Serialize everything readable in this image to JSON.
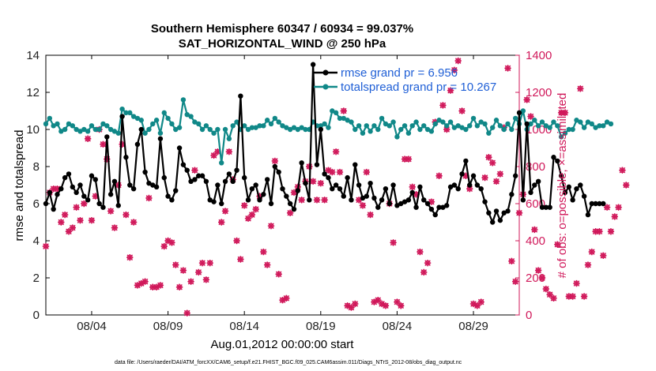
{
  "chart_data": {
    "type": "line",
    "title": "Southern Hemisphere 60347 / 60934 = 99.037%",
    "subtitle": "SAT_HORIZONTAL_WIND @ 250 hPa",
    "xlabel": "Aug.01,2012 00:00:00 start",
    "ylabel_left": "rmse and totalspread",
    "ylabel_right": "# of obs: o=possible; ×=assimilated",
    "x_tick_labels": [
      "08/04",
      "08/09",
      "08/14",
      "08/19",
      "08/24",
      "08/29"
    ],
    "x_tick_days": [
      4,
      9,
      14,
      19,
      24,
      29
    ],
    "xlim": [
      1.0,
      32.0
    ],
    "ylim_left": [
      0,
      14
    ],
    "yticks_left": [
      0,
      2,
      4,
      6,
      8,
      10,
      12,
      14
    ],
    "ylim_right": [
      0,
      1400
    ],
    "yticks_right": [
      0,
      200,
      400,
      600,
      800,
      1000,
      1200,
      1400
    ],
    "grid": false,
    "legend_placement": "top-right",
    "colors": {
      "rmse": "#000000",
      "spread": "#108888",
      "obs": "#d0185a",
      "legend_text": "#1f5fd6",
      "right_axis": "#d0185a"
    },
    "series": [
      {
        "name": "rmse grand pr = 6.956",
        "axis": "left",
        "x_start": 1.0,
        "x_step": 0.25,
        "values": [
          6.0,
          6.6,
          5.7,
          6.5,
          6.8,
          7.4,
          7.6,
          6.9,
          6.6,
          7.0,
          6.4,
          6.2,
          7.5,
          7.3,
          6.0,
          5.8,
          9.6,
          6.5,
          7.2,
          5.9,
          10.7,
          8.5,
          7.0,
          6.8,
          9.2,
          10.0,
          7.7,
          7.1,
          7.0,
          6.9,
          9.5,
          7.4,
          6.4,
          6.2,
          6.7,
          9.0,
          8.1,
          7.8,
          7.2,
          7.3,
          7.5,
          7.5,
          7.2,
          6.2,
          6.1,
          7.0,
          6.0,
          7.2,
          7.6,
          7.2,
          7.8,
          11.8,
          7.4,
          6.2,
          6.8,
          7.0,
          6.2,
          6.5,
          7.3,
          6.0,
          8.0,
          7.7,
          6.8,
          6.4,
          6.0,
          5.7,
          6.7,
          8.2,
          7.1,
          6.2,
          13.5,
          8.1,
          10.0,
          7.6,
          7.4,
          6.8,
          7.0,
          6.8,
          6.4,
          7.4,
          6.2,
          8.1,
          7.0,
          6.3,
          6.4,
          7.1,
          6.3,
          5.8,
          6.2,
          6.8,
          6.0,
          7.0,
          5.9,
          6.0,
          6.1,
          6.2,
          6.6,
          5.8,
          6.9,
          6.2,
          6.0,
          5.7,
          5.4,
          5.8,
          5.8,
          5.9,
          6.9,
          7.0,
          6.8,
          7.6,
          8.3,
          7.0,
          7.5,
          7.0,
          6.8,
          6.1,
          5.5,
          5.0,
          5.6,
          5.1,
          5.5,
          5.6,
          6.5,
          7.5,
          10.9,
          6.2,
          10.3,
          6.6,
          7.0,
          7.2,
          5.8,
          5.8,
          5.8,
          8.5,
          8.3,
          7.5,
          6.6,
          6.9,
          6.2,
          6.8,
          7.0,
          6.4,
          5.4,
          6.0,
          6.0,
          6.0,
          6.0
        ]
      },
      {
        "name": "totalspread grand pr = 10.267",
        "axis": "left",
        "x_start": 1.0,
        "x_step": 0.25,
        "values": [
          10.3,
          10.6,
          10.2,
          10.3,
          9.9,
          10.0,
          10.3,
          10.2,
          10.0,
          9.9,
          10.0,
          9.9,
          10.2,
          10.0,
          10.0,
          10.3,
          10.2,
          10.0,
          9.9,
          9.8,
          11.1,
          10.9,
          10.9,
          10.7,
          10.6,
          10.5,
          9.8,
          10.0,
          10.3,
          10.5,
          9.8,
          10.9,
          10.6,
          10.3,
          10.0,
          10.1,
          11.6,
          10.8,
          10.7,
          10.4,
          10.3,
          10.0,
          10.2,
          10.0,
          9.8,
          10.0,
          8.2,
          10.0,
          9.5,
          10.2,
          10.4,
          10.0,
          10.2,
          10.0,
          10.1,
          10.1,
          10.2,
          10.2,
          10.5,
          10.3,
          10.6,
          10.4,
          10.2,
          10.1,
          10.0,
          10.1,
          10.0,
          10.1,
          10.0,
          10.0,
          10.4,
          10.2,
          10.2,
          10.3,
          10.1,
          11.0,
          10.9,
          10.6,
          10.6,
          10.5,
          10.4,
          10.0,
          10.2,
          9.8,
          10.2,
          9.9,
          10.2,
          10.0,
          10.6,
          10.3,
          10.2,
          10.4,
          9.6,
          10.0,
          10.2,
          9.8,
          10.2,
          10.4,
          10.0,
          10.2,
          10.0,
          9.9,
          10.3,
          10.5,
          10.4,
          10.2,
          10.4,
          10.1,
          10.2,
          10.1,
          10.0,
          10.2,
          10.6,
          10.2,
          10.4,
          10.3,
          9.8,
          10.1,
          10.5,
          10.2,
          10.0,
          10.3,
          10.0,
          10.6,
          10.3,
          11.0,
          10.0,
          10.3,
          10.5,
          10.2,
          10.4,
          10.2,
          10.1,
          10.4,
          10.2,
          9.6,
          9.8,
          10.0,
          10.0,
          10.5,
          10.4,
          10.1,
          10.4,
          10.3,
          10.1,
          10.2,
          10.2,
          10.4,
          10.3
        ]
      },
      {
        "name": "# of obs possible / assimilated",
        "axis": "right",
        "x_start": 1.0,
        "x_step": 0.25,
        "values": [
          370,
          660,
          680,
          680,
          500,
          540,
          450,
          470,
          580,
          510,
          600,
          950,
          510,
          640,
          1000,
          920,
          840,
          560,
          470,
          700,
          920,
          540,
          310,
          500,
          160,
          170,
          180,
          630,
          150,
          150,
          160,
          370,
          400,
          390,
          270,
          150,
          240,
          10,
          180,
          780,
          230,
          280,
          190,
          280,
          860,
          880,
          500,
          560,
          880,
          730,
          400,
          300,
          590,
          520,
          540,
          570,
          640,
          340,
          270,
          480,
          830,
          220,
          80,
          90,
          550,
          660,
          690,
          620,
          720,
          800,
          720,
          620,
          710,
          620,
          780,
          770,
          880,
          770,
          1100,
          50,
          40,
          60,
          620,
          590,
          770,
          540,
          70,
          80,
          60,
          50,
          600,
          390,
          70,
          50,
          840,
          840,
          690,
          650,
          340,
          230,
          280,
          610,
          1040,
          750,
          1130,
          1000,
          1210,
          1320,
          1370,
          1100,
          750,
          680,
          60,
          50,
          70,
          740,
          850,
          820,
          720,
          760,
          1010,
          1330,
          290,
          180,
          550,
          650,
          1160,
          1070,
          460,
          240,
          200,
          140,
          110,
          90,
          380,
          1090,
          1090,
          100,
          100,
          170,
          1220,
          100,
          270,
          340,
          450,
          450,
          320,
          580,
          450,
          530,
          580,
          780,
          700
        ]
      }
    ]
  },
  "footnote": "data file: /Users/raeder/DAI/ATM_forcXX/CAM6_setup/f.e21.FHIST_BGC.f09_025.CAM6assim.011/Diags_NTrS_2012-08/obs_diag_output.nc"
}
